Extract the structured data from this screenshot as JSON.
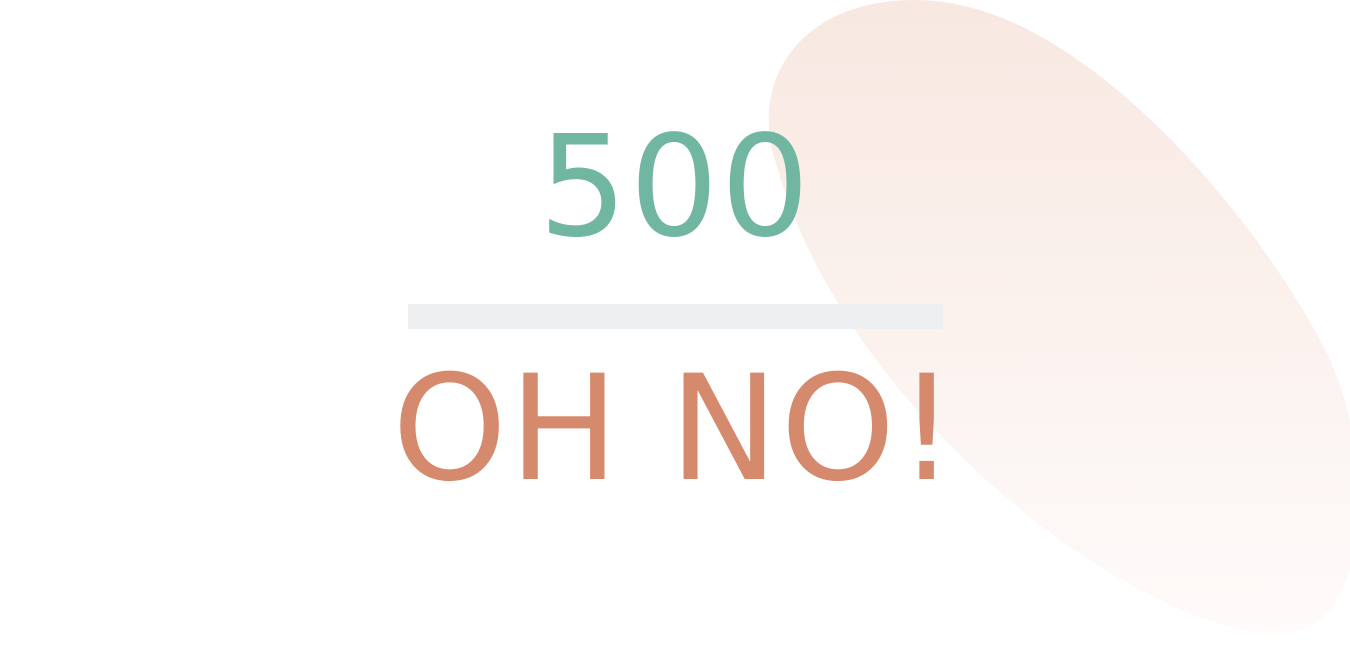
{
  "error": {
    "code": "500",
    "title": "OH NO!"
  },
  "colors": {
    "code": "#71b6a1",
    "title": "#d68a6d",
    "divider": "#edeff0",
    "blob_top": "#f8e8e1",
    "blob_bottom": "#fefbfa"
  }
}
